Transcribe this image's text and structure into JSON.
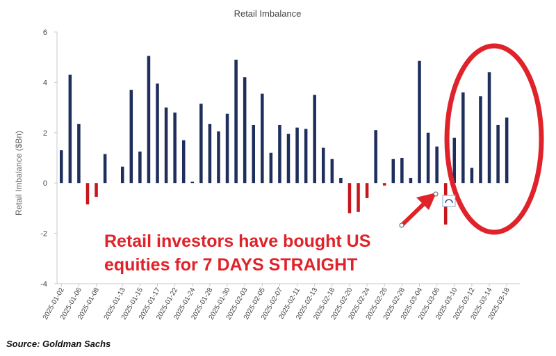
{
  "colors": {
    "positive_bar": "#1f2f5c",
    "negative_bar": "#c8161d",
    "annotation_red": "#e0222a",
    "tick_text": "#444444",
    "axis_line": "#c8c8c8"
  },
  "chart_data": {
    "type": "bar",
    "title": "Retail Imbalance",
    "xlabel": "",
    "ylabel": "Retail Imbalance ($Bn)",
    "ylim": [
      -4,
      6
    ],
    "yticks": [
      -4,
      -2,
      0,
      2,
      4,
      6
    ],
    "grid": false,
    "legend": "none",
    "categories": [
      "2025-01-02",
      "2025-01-03",
      "2025-01-06",
      "2025-01-07",
      "2025-01-08",
      "2025-01-09",
      "2025-01-10",
      "2025-01-13",
      "2025-01-14",
      "2025-01-15",
      "2025-01-16",
      "2025-01-17",
      "2025-01-21",
      "2025-01-22",
      "2025-01-23",
      "2025-01-24",
      "2025-01-27",
      "2025-01-28",
      "2025-01-29",
      "2025-01-30",
      "2025-01-31",
      "2025-02-03",
      "2025-02-04",
      "2025-02-05",
      "2025-02-06",
      "2025-02-07",
      "2025-02-10",
      "2025-02-11",
      "2025-02-12",
      "2025-02-13",
      "2025-02-14",
      "2025-02-18",
      "2025-02-19",
      "2025-02-20",
      "2025-02-21",
      "2025-02-24",
      "2025-02-25",
      "2025-02-26",
      "2025-02-27",
      "2025-02-28",
      "2025-03-03",
      "2025-03-04",
      "2025-03-05",
      "2025-03-06",
      "2025-03-07",
      "2025-03-10",
      "2025-03-11",
      "2025-03-12",
      "2025-03-13",
      "2025-03-14",
      "2025-03-17",
      "2025-03-18",
      "2025-03-19"
    ],
    "tick_labels": [
      "2025-01-02",
      "2025-01-06",
      "2025-01-08",
      "2025-01-13",
      "2025-01-15",
      "2025-01-17",
      "2025-01-22",
      "2025-01-24",
      "2025-01-28",
      "2025-01-30",
      "2025-02-03",
      "2025-02-05",
      "2025-02-07",
      "2025-02-11",
      "2025-02-13",
      "2025-02-18",
      "2025-02-20",
      "2025-02-24",
      "2025-02-26",
      "2025-02-28",
      "2025-03-04",
      "2025-03-06",
      "2025-03-10",
      "2025-03-12",
      "2025-03-14",
      "2025-03-18"
    ],
    "values": [
      1.3,
      4.3,
      2.35,
      -0.85,
      -0.55,
      1.15,
      null,
      0.65,
      3.7,
      1.25,
      5.05,
      3.95,
      3.0,
      2.8,
      1.7,
      0.05,
      3.15,
      2.35,
      2.05,
      2.75,
      4.9,
      4.2,
      2.3,
      3.55,
      1.2,
      2.3,
      1.95,
      2.2,
      2.15,
      3.5,
      1.4,
      0.95,
      0.2,
      -1.2,
      -1.15,
      -0.6,
      2.1,
      -0.1,
      0.95,
      1.0,
      0.2,
      4.85,
      2.0,
      1.45,
      -1.65,
      1.8,
      3.6,
      0.6,
      3.45,
      4.4,
      2.3,
      2.6,
      null
    ]
  },
  "annotation": {
    "callout_line1": "Retail investors have bought US",
    "callout_line2": "equities for 7 DAYS STRAIGHT",
    "highlight_shape": "ellipse-outline",
    "pointer": "red-arrow"
  },
  "source": "Source: Goldman Sachs"
}
